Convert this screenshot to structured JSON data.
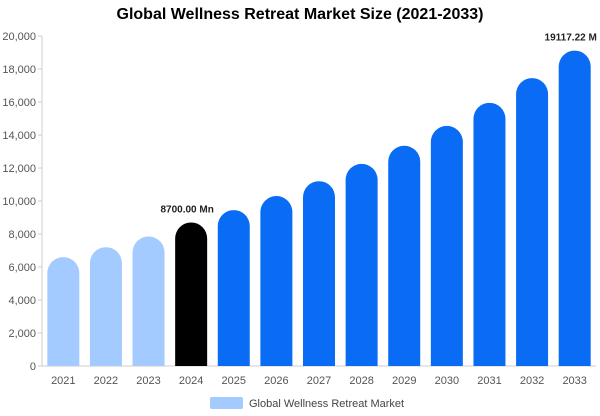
{
  "chart_data": {
    "type": "bar",
    "title": "Global Wellness Retreat Market Size (2021-2033)",
    "categories": [
      "2021",
      "2022",
      "2023",
      "2024",
      "2025",
      "2026",
      "2027",
      "2028",
      "2029",
      "2030",
      "2031",
      "2032",
      "2033"
    ],
    "series": [
      {
        "name": "Global Wellness Retreat Market",
        "values": [
          6600,
          7200,
          7850,
          8700,
          9450,
          10300,
          11200,
          12250,
          13350,
          14550,
          15950,
          17450,
          19117.22
        ]
      }
    ],
    "bar_colors": [
      "#a3cbff",
      "#a3cbff",
      "#a3cbff",
      "#000000",
      "#0a6cf5",
      "#0a6cf5",
      "#0a6cf5",
      "#0a6cf5",
      "#0a6cf5",
      "#0a6cf5",
      "#0a6cf5",
      "#0a6cf5",
      "#0a6cf5"
    ],
    "data_labels": [
      {
        "category_index": 3,
        "text": "8700.00 Mn"
      },
      {
        "category_index": 12,
        "text": "19117.22 M"
      }
    ],
    "ylim": [
      0,
      20000
    ],
    "yticks": [
      0,
      2000,
      4000,
      6000,
      8000,
      10000,
      12000,
      14000,
      16000,
      18000,
      20000
    ],
    "ytick_labels": [
      "0",
      "2,000",
      "4,000",
      "6,000",
      "8,000",
      "10,000",
      "12,000",
      "14,000",
      "16,000",
      "18,000",
      "20,000"
    ],
    "grid": false,
    "legend": {
      "position": "bottom",
      "color": "#a3cbff"
    },
    "xlabel": "",
    "ylabel": ""
  }
}
